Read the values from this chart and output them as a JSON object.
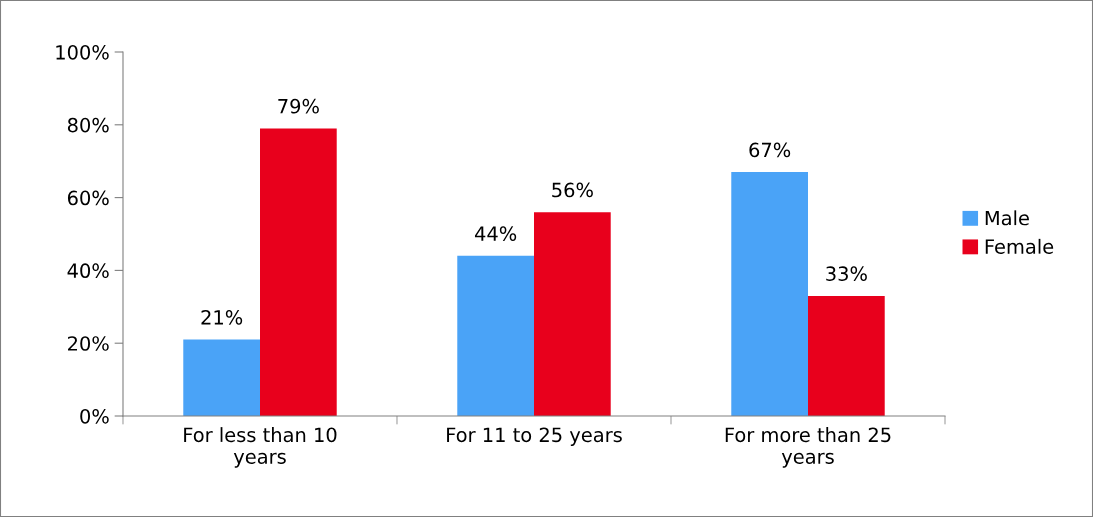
{
  "chart_data": {
    "type": "bar",
    "categories": [
      "For less than 10 years",
      "For 11 to 25 years",
      "For more than 25 years"
    ],
    "series": [
      {
        "name": "Male",
        "color": "#4aa3f7",
        "values": [
          21,
          44,
          67
        ],
        "value_labels": [
          "21%",
          "44%",
          "67%"
        ]
      },
      {
        "name": "Female",
        "color": "#e8001c",
        "values": [
          79,
          56,
          33
        ],
        "value_labels": [
          "79%",
          "56%",
          "33%"
        ]
      }
    ],
    "ylim": [
      0,
      100
    ],
    "yticks": [
      {
        "value": 0,
        "label": "0%"
      },
      {
        "value": 20,
        "label": "20%"
      },
      {
        "value": 40,
        "label": "40%"
      },
      {
        "value": 60,
        "label": "60%"
      },
      {
        "value": 80,
        "label": "80%"
      },
      {
        "value": 100,
        "label": "100%"
      }
    ],
    "grid": false,
    "legend": "right"
  }
}
